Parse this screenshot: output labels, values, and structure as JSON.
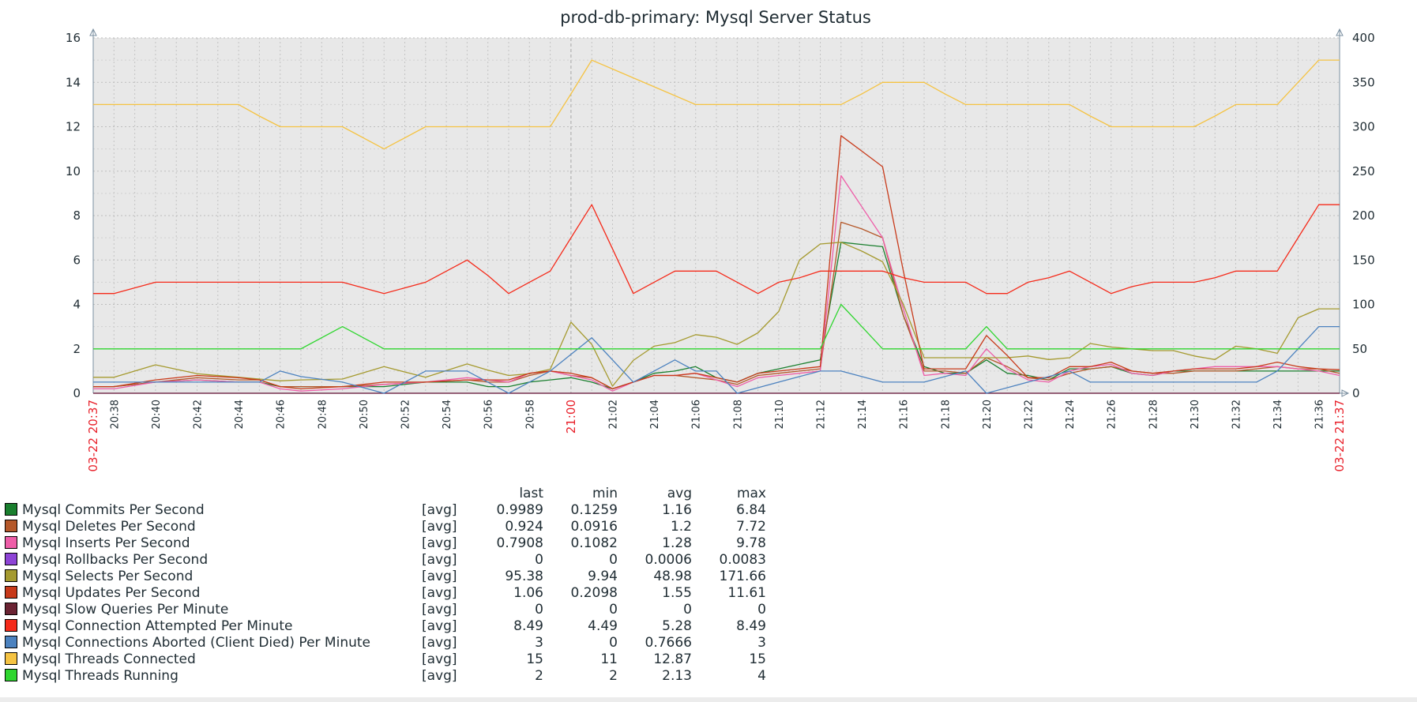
{
  "chart_data": {
    "type": "line",
    "title": "prod-db-primary: Mysql Server Status",
    "left_axis": {
      "ylim": [
        0,
        16
      ],
      "ticks": [
        "0",
        "2",
        "4",
        "6",
        "8",
        "10",
        "12",
        "14",
        "16"
      ]
    },
    "right_axis": {
      "ylim": [
        0,
        400
      ],
      "ticks": [
        "0",
        "50",
        "100",
        "150",
        "200",
        "250",
        "300",
        "350",
        "400"
      ]
    },
    "x_start_label": "03-22 20:37",
    "x_end_label": "03-22 21:37",
    "x_range_min": [
      37,
      97
    ],
    "x_major_label": "21:00",
    "x_tick_labels": [
      "20:38",
      "20:40",
      "20:42",
      "20:44",
      "20:46",
      "20:48",
      "20:50",
      "20:52",
      "20:54",
      "20:56",
      "20:58",
      "21:00",
      "21:02",
      "21:04",
      "21:06",
      "21:08",
      "21:10",
      "21:12",
      "21:14",
      "21:16",
      "21:18",
      "21:20",
      "21:22",
      "21:24",
      "21:26",
      "21:28",
      "21:30",
      "21:32",
      "21:34",
      "21:36"
    ],
    "background": "#e8e8e8",
    "grid": true,
    "legend_position": "bottom-left",
    "x": [
      37,
      38,
      40,
      42,
      44,
      45,
      46,
      47,
      49,
      51,
      53,
      55,
      56,
      57,
      58,
      59,
      60,
      61,
      62,
      63,
      64,
      65,
      66,
      67,
      68,
      69,
      70,
      71,
      72,
      73,
      74,
      75,
      76,
      77,
      78,
      79,
      80,
      81,
      82,
      83,
      84,
      85,
      86,
      87,
      88,
      89,
      90,
      91,
      92,
      93,
      94,
      95,
      96,
      97
    ],
    "series": [
      {
        "name": "Mysql Commits Per Second",
        "axis": "left",
        "color": "#1a7f2e",
        "values": [
          0.3,
          0.3,
          0.5,
          0.6,
          0.5,
          0.5,
          0.3,
          0.3,
          0.3,
          0.3,
          0.5,
          0.5,
          0.3,
          0.3,
          0.5,
          0.6,
          0.7,
          0.5,
          0.2,
          0.5,
          0.9,
          1.0,
          1.2,
          0.7,
          0.5,
          0.9,
          1.1,
          1.3,
          1.5,
          6.8,
          6.7,
          6.6,
          3.5,
          1.2,
          0.9,
          0.9,
          1.5,
          0.9,
          0.8,
          0.6,
          1.1,
          1.1,
          1.2,
          0.9,
          0.8,
          1.0,
          1.0,
          1.0,
          1.0,
          1.0,
          1.0,
          1.0,
          1.0,
          1.0
        ]
      },
      {
        "name": "Mysql Deletes Per Second",
        "axis": "left",
        "color": "#b5582a",
        "values": [
          0.3,
          0.3,
          0.5,
          0.7,
          0.6,
          0.6,
          0.3,
          0.3,
          0.3,
          0.4,
          0.5,
          0.6,
          0.5,
          0.5,
          0.8,
          1.0,
          0.8,
          0.7,
          0.2,
          0.5,
          0.8,
          0.8,
          0.7,
          0.6,
          0.4,
          0.8,
          0.9,
          1.0,
          1.1,
          7.7,
          7.4,
          7.0,
          3.5,
          1.0,
          1.0,
          0.9,
          1.6,
          1.2,
          0.7,
          0.6,
          0.9,
          1.1,
          1.2,
          1.0,
          0.9,
          0.9,
          1.0,
          1.0,
          1.0,
          1.1,
          1.2,
          1.1,
          1.1,
          0.9
        ]
      },
      {
        "name": "Mysql Inserts Per Second",
        "axis": "left",
        "color": "#ee5da8",
        "values": [
          0.2,
          0.2,
          0.5,
          0.6,
          0.5,
          0.5,
          0.2,
          0.1,
          0.2,
          0.4,
          0.5,
          0.7,
          0.6,
          0.5,
          0.9,
          1.0,
          0.8,
          0.6,
          0.1,
          0.5,
          0.8,
          0.8,
          0.9,
          0.6,
          0.3,
          0.7,
          0.8,
          0.9,
          1.0,
          9.8,
          8.4,
          7.0,
          3.8,
          0.8,
          0.9,
          0.8,
          2.0,
          1.1,
          0.6,
          0.5,
          1.0,
          1.2,
          1.3,
          0.9,
          0.8,
          1.0,
          1.1,
          1.2,
          1.2,
          1.2,
          1.2,
          1.1,
          1.0,
          0.8
        ]
      },
      {
        "name": "Mysql Rollbacks Per Second",
        "axis": "left",
        "color": "#8e44d6",
        "values": [
          0,
          0,
          0,
          0,
          0,
          0,
          0,
          0,
          0,
          0,
          0,
          0,
          0,
          0,
          0,
          0,
          0,
          0,
          0,
          0,
          0,
          0,
          0,
          0,
          0,
          0,
          0,
          0,
          0,
          0,
          0,
          0,
          0,
          0,
          0,
          0,
          0,
          0,
          0,
          0,
          0,
          0,
          0,
          0,
          0,
          0,
          0,
          0,
          0,
          0,
          0,
          0,
          0,
          0
        ]
      },
      {
        "name": "Mysql Selects Per Second",
        "axis": "right",
        "color": "#a59a2f",
        "values": [
          18,
          18,
          32,
          22,
          18,
          16,
          14,
          15,
          16,
          30,
          18,
          33,
          26,
          20,
          22,
          27,
          80,
          55,
          8,
          37,
          53,
          57,
          66,
          63,
          55,
          68,
          92,
          150,
          168,
          170,
          160,
          148,
          100,
          40,
          40,
          40,
          40,
          40,
          42,
          38,
          40,
          56,
          52,
          50,
          48,
          48,
          42,
          38,
          53,
          50,
          45,
          85,
          95,
          95
        ]
      },
      {
        "name": "Mysql Updates Per Second",
        "axis": "left",
        "color": "#c83a1a",
        "values": [
          0.3,
          0.3,
          0.6,
          0.8,
          0.7,
          0.6,
          0.3,
          0.2,
          0.3,
          0.5,
          0.5,
          0.6,
          0.6,
          0.6,
          0.9,
          1.0,
          0.9,
          0.7,
          0.2,
          0.5,
          0.8,
          0.8,
          0.9,
          0.7,
          0.5,
          0.9,
          1.0,
          1.1,
          1.2,
          11.6,
          10.9,
          10.2,
          5.5,
          1.1,
          1.1,
          1.1,
          2.6,
          1.7,
          0.7,
          0.7,
          1.2,
          1.2,
          1.4,
          1.0,
          0.9,
          1.0,
          1.1,
          1.1,
          1.1,
          1.2,
          1.4,
          1.2,
          1.1,
          1.06
        ]
      },
      {
        "name": "Mysql Slow Queries Per Minute",
        "axis": "left",
        "color": "#6b2333",
        "values": [
          0,
          0,
          0,
          0,
          0,
          0,
          0,
          0,
          0,
          0,
          0,
          0,
          0,
          0,
          0,
          0,
          0,
          0,
          0,
          0,
          0,
          0,
          0,
          0,
          0,
          0,
          0,
          0,
          0,
          0,
          0,
          0,
          0,
          0,
          0,
          0,
          0,
          0,
          0,
          0,
          0,
          0,
          0,
          0,
          0,
          0,
          0,
          0,
          0,
          0,
          0,
          0,
          0,
          0
        ]
      },
      {
        "name": "Mysql Connection Attempted Per Minute",
        "axis": "left",
        "color": "#f52a1a",
        "values": [
          4.49,
          4.49,
          5.0,
          5.0,
          5.0,
          5.0,
          5.0,
          5.0,
          5.0,
          4.49,
          5.0,
          6.0,
          5.3,
          4.49,
          5.0,
          5.5,
          7.0,
          8.49,
          6.5,
          4.49,
          5.0,
          5.5,
          5.5,
          5.5,
          5.0,
          4.49,
          5.0,
          5.2,
          5.5,
          5.5,
          5.5,
          5.5,
          5.2,
          5.0,
          5.0,
          5.0,
          4.49,
          4.49,
          5.0,
          5.2,
          5.5,
          5.0,
          4.49,
          4.8,
          5.0,
          5.0,
          5.0,
          5.2,
          5.5,
          5.5,
          5.5,
          7.0,
          8.49,
          8.49
        ]
      },
      {
        "name": "Mysql Connections Aborted (Client Died) Per Minute",
        "axis": "left",
        "color": "#4c82bf",
        "values": [
          0.5,
          0.5,
          0.5,
          0.5,
          0.5,
          0.5,
          1.0,
          0.75,
          0.5,
          0,
          1.0,
          1.0,
          0.5,
          0,
          0.5,
          1.0,
          1.75,
          2.5,
          1.5,
          0.5,
          1.0,
          1.5,
          1.0,
          1.0,
          0,
          0.25,
          0.5,
          0.75,
          1.0,
          1.0,
          0.75,
          0.5,
          0.5,
          0.5,
          0.75,
          1.0,
          0,
          0.25,
          0.5,
          0.75,
          1.0,
          0.5,
          0.5,
          0.5,
          0.5,
          0.5,
          0.5,
          0.5,
          0.5,
          0.5,
          1.0,
          2.0,
          3.0,
          3.0
        ]
      },
      {
        "name": "Mysql Threads Connected",
        "axis": "right",
        "color": "#f5c343",
        "values": [
          325,
          325,
          325,
          325,
          325,
          312,
          300,
          300,
          300,
          275,
          300,
          300,
          300,
          300,
          300,
          300,
          337,
          375,
          365,
          355,
          345,
          335,
          325,
          325,
          325,
          325,
          325,
          325,
          325,
          325,
          337,
          350,
          350,
          350,
          337,
          325,
          325,
          325,
          325,
          325,
          325,
          312,
          300,
          300,
          300,
          300,
          300,
          312,
          325,
          325,
          325,
          350,
          375,
          375
        ]
      },
      {
        "name": "Mysql Threads Running",
        "axis": "right",
        "color": "#2fd62f",
        "values": [
          50,
          50,
          50,
          50,
          50,
          50,
          50,
          50,
          75,
          50,
          50,
          50,
          50,
          50,
          50,
          50,
          50,
          50,
          50,
          50,
          50,
          50,
          50,
          50,
          50,
          50,
          50,
          50,
          50,
          100,
          75,
          50,
          50,
          50,
          50,
          50,
          75,
          50,
          50,
          50,
          50,
          50,
          50,
          50,
          50,
          50,
          50,
          50,
          50,
          50,
          50,
          50,
          50,
          50
        ]
      }
    ]
  },
  "legend": {
    "headers": [
      "last",
      "min",
      "avg",
      "max"
    ],
    "rows": [
      {
        "name": "Mysql Commits Per Second",
        "color": "#1a7f2e",
        "fn": "[avg]",
        "last": "0.9989",
        "min": "0.1259",
        "avg": "1.16",
        "max": "6.84"
      },
      {
        "name": "Mysql Deletes Per Second",
        "color": "#b5582a",
        "fn": "[avg]",
        "last": "0.924",
        "min": "0.0916",
        "avg": "1.2",
        "max": "7.72"
      },
      {
        "name": "Mysql Inserts Per Second",
        "color": "#ee5da8",
        "fn": "[avg]",
        "last": "0.7908",
        "min": "0.1082",
        "avg": "1.28",
        "max": "9.78"
      },
      {
        "name": "Mysql Rollbacks Per Second",
        "color": "#8e44d6",
        "fn": "[avg]",
        "last": "0",
        "min": "0",
        "avg": "0.0006",
        "max": "0.0083"
      },
      {
        "name": "Mysql Selects Per Second",
        "color": "#a59a2f",
        "fn": "[avg]",
        "last": "95.38",
        "min": "9.94",
        "avg": "48.98",
        "max": "171.66"
      },
      {
        "name": "Mysql Updates Per Second",
        "color": "#c83a1a",
        "fn": "[avg]",
        "last": "1.06",
        "min": "0.2098",
        "avg": "1.55",
        "max": "11.61"
      },
      {
        "name": "Mysql Slow Queries Per Minute",
        "color": "#6b2333",
        "fn": "[avg]",
        "last": "0",
        "min": "0",
        "avg": "0",
        "max": "0"
      },
      {
        "name": "Mysql Connection Attempted Per Minute",
        "color": "#f52a1a",
        "fn": "[avg]",
        "last": "8.49",
        "min": "4.49",
        "avg": "5.28",
        "max": "8.49"
      },
      {
        "name": "Mysql Connections Aborted (Client Died) Per Minute",
        "color": "#4c82bf",
        "fn": "[avg]",
        "last": "3",
        "min": "0",
        "avg": "0.7666",
        "max": "3"
      },
      {
        "name": "Mysql Threads Connected",
        "color": "#f5c343",
        "fn": "[avg]",
        "last": "15",
        "min": "11",
        "avg": "12.87",
        "max": "15"
      },
      {
        "name": "Mysql Threads Running",
        "color": "#2fd62f",
        "fn": "[avg]",
        "last": "2",
        "min": "2",
        "avg": "2.13",
        "max": "4"
      }
    ]
  }
}
